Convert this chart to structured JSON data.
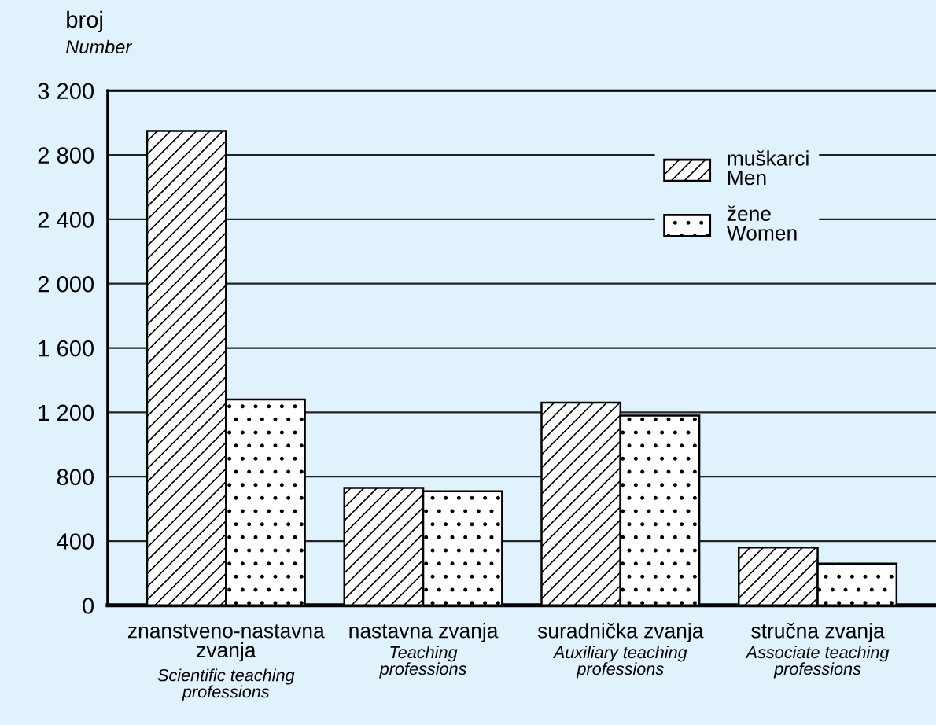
{
  "chart_data": {
    "type": "bar",
    "ylabel": "broj\nNumber",
    "categories": [
      "znanstveno-nastavna\nzvanja\nScientific teaching\nprofessions",
      "nastavna zvanja\nTeaching\nprofessions",
      "suradnička zvanja\nAuxiliary teaching\nprofessions",
      "stručna zvanja\nAssociate teaching\nprofessions"
    ],
    "series": [
      {
        "name": "muškarci\nMen",
        "color": "#000000",
        "values": [
          2950,
          730,
          1260,
          360
        ]
      },
      {
        "name": "žene\nWomen",
        "color": "#000000",
        "values": [
          1280,
          710,
          1180,
          260
        ]
      }
    ],
    "ylim": [
      0,
      3200
    ],
    "yticks": [
      0,
      {
        "value": 400,
        "label": "400"
      },
      {
        "value": 800,
        "label": "800"
      },
      {
        "value": 1200,
        "label": "1 200"
      },
      {
        "value": 1600,
        "label": "1 600"
      },
      {
        "value": 2000,
        "label": "2 000"
      },
      {
        "value": 2400,
        "label": "2 400"
      },
      {
        "value": 2800,
        "label": "2 800"
      },
      {
        "value": 3200,
        "label": "3 200"
      }
    ],
    "grid": "y",
    "legend": "top right"
  }
}
